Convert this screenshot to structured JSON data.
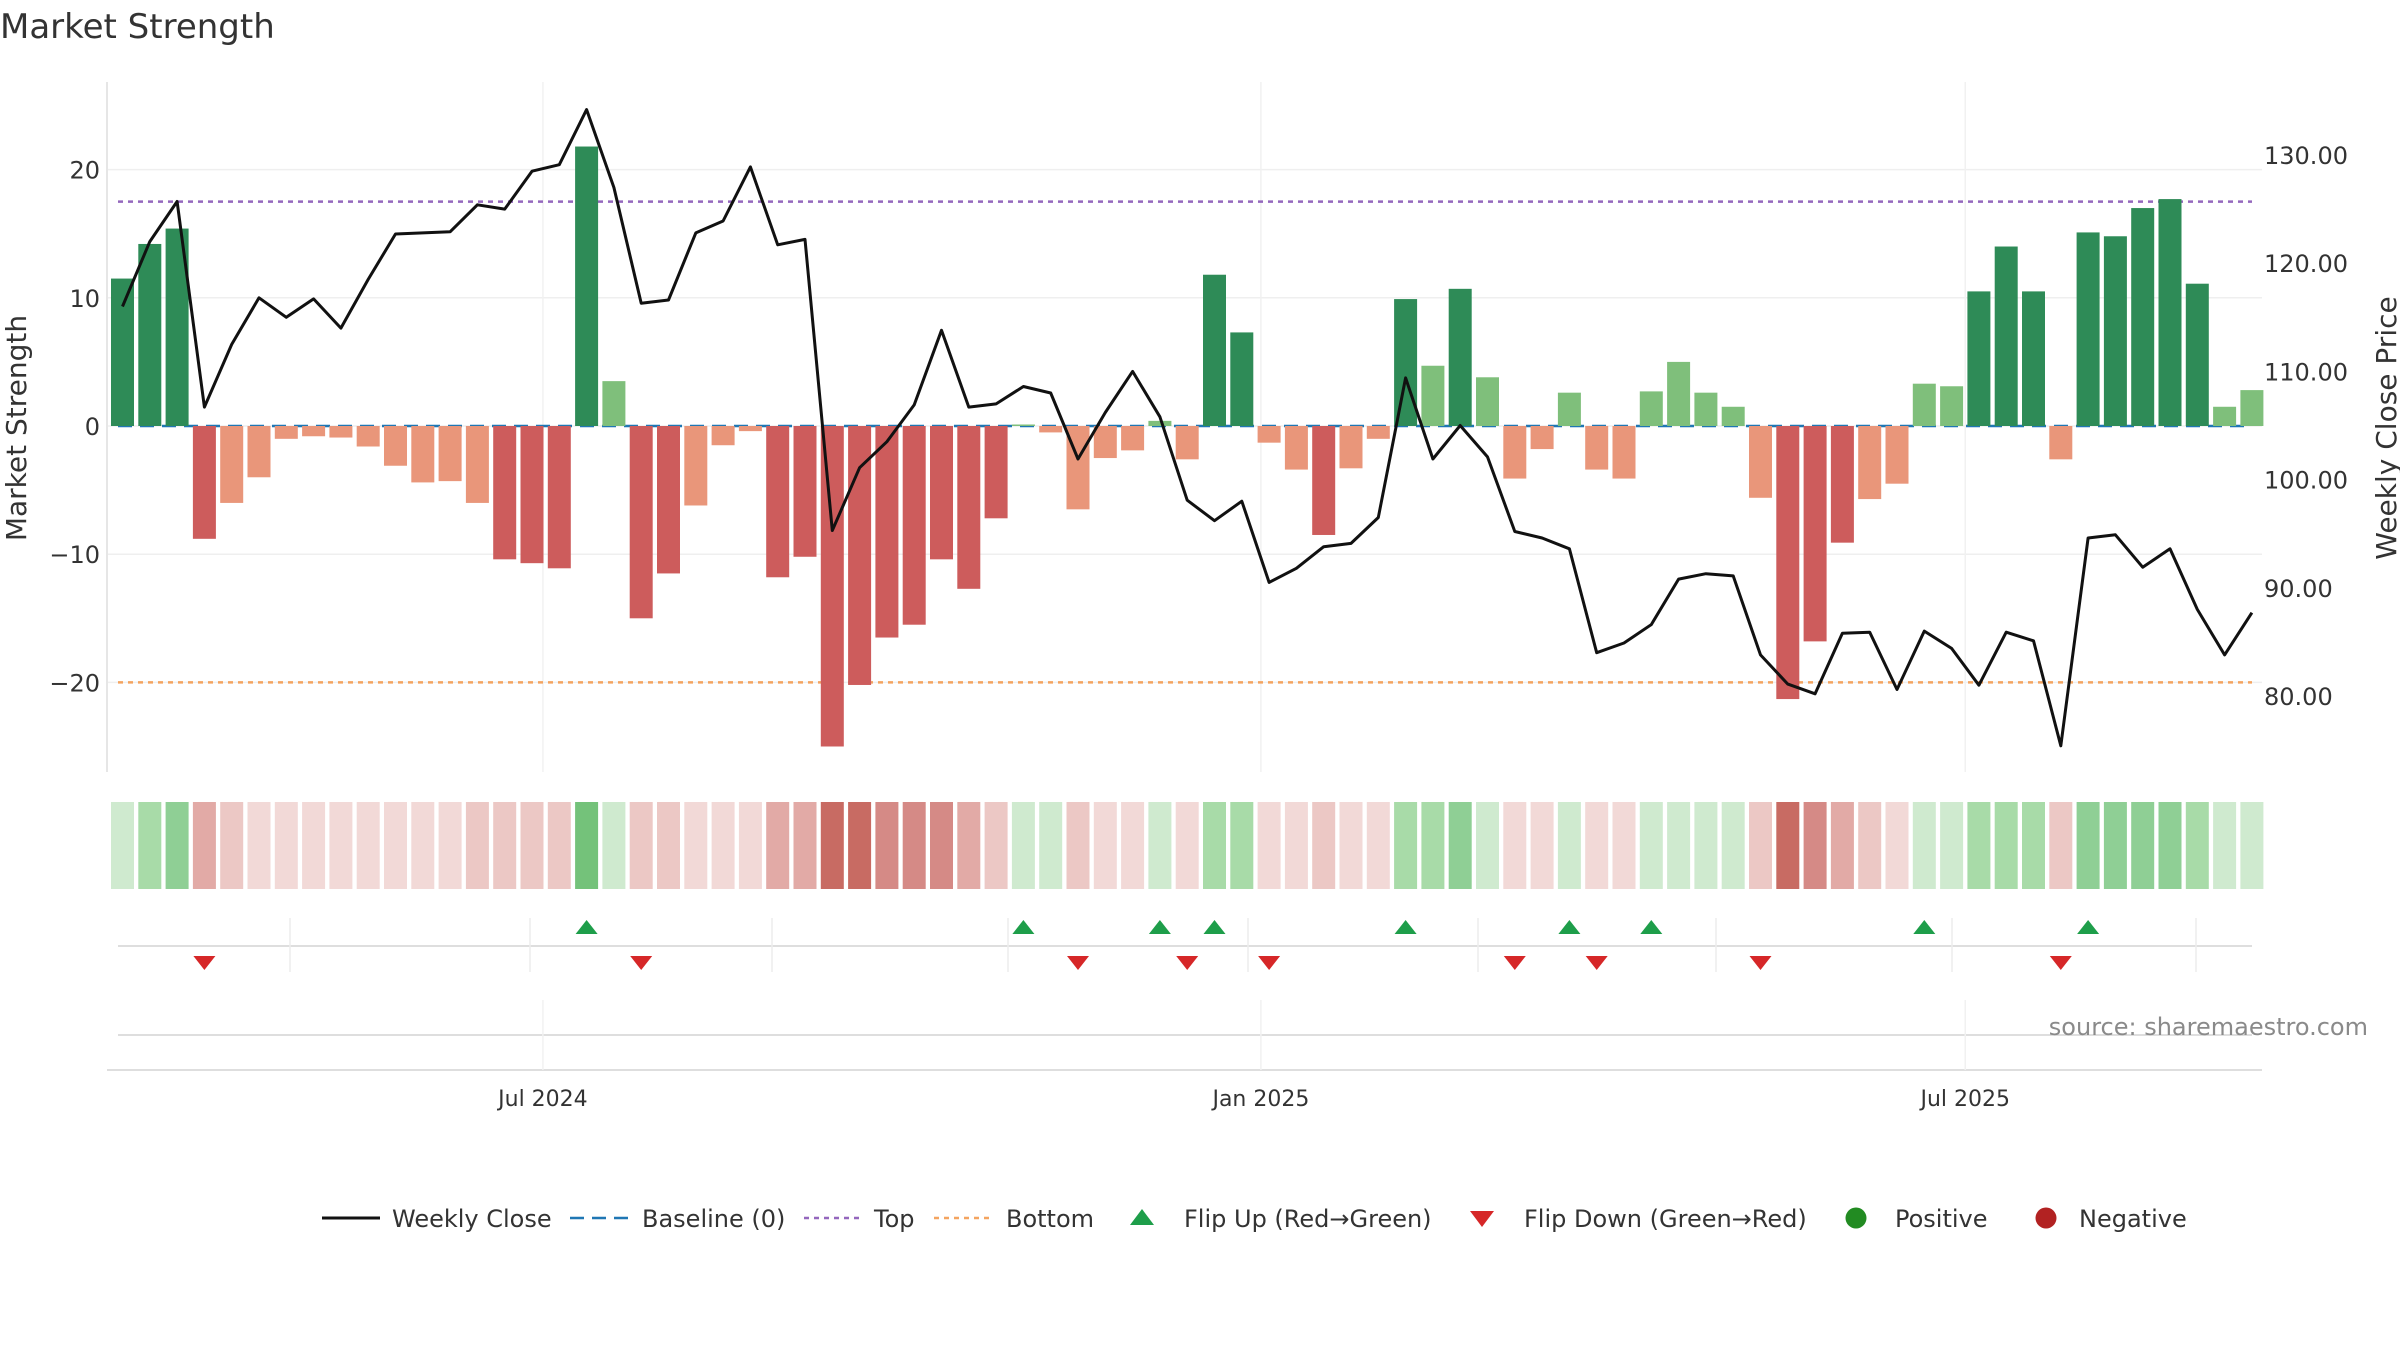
{
  "chart_data": {
    "type": "bar",
    "title": "Market Strength",
    "ylabel": "Market Strength",
    "y2label": "Weekly Close Price",
    "ylim": [
      -27,
      27
    ],
    "y2lim": [
      71.5,
      136.6
    ],
    "yticks": [
      20,
      10,
      0,
      -10,
      -20
    ],
    "ytick_labels": [
      "20",
      "10",
      "0",
      "−10",
      "−20"
    ],
    "y2ticks": [
      130,
      120,
      110,
      100,
      90,
      80
    ],
    "y2tick_labels": [
      "130.00",
      "120.00",
      "110.00",
      "100.00",
      "90.00",
      "80.00"
    ],
    "x_ticks": [
      {
        "label": "Jul 2024",
        "index": 15.4
      },
      {
        "label": "Jan 2025",
        "index": 41.7
      },
      {
        "label": "Jul 2025",
        "index": 67.5
      }
    ],
    "top_line": 17.5,
    "bottom_line": -20,
    "baseline": 0,
    "market_strength": [
      11.5,
      14.2,
      15.4,
      -8.8,
      -6.0,
      -4.0,
      -1.0,
      -0.8,
      -0.9,
      -1.6,
      -3.1,
      -4.4,
      -4.3,
      -6.0,
      -10.4,
      -10.7,
      -11.1,
      21.8,
      3.5,
      -15.0,
      -11.5,
      -6.2,
      -1.5,
      -0.4,
      -11.8,
      -10.2,
      -25.0,
      -20.2,
      -16.5,
      -15.5,
      -10.4,
      -12.7,
      -7.2,
      0.1,
      -0.5,
      -6.5,
      -2.5,
      -1.9,
      0.4,
      -2.6,
      11.8,
      7.3,
      -1.3,
      -3.4,
      -8.5,
      -3.3,
      -1.0,
      9.9,
      4.7,
      10.7,
      3.8,
      -4.1,
      -1.8,
      2.6,
      -3.4,
      -4.1,
      2.7,
      5.0,
      2.6,
      1.5,
      -5.6,
      -21.3,
      -16.8,
      -9.1,
      -5.7,
      -4.5,
      3.3,
      3.1,
      10.5,
      14.0,
      10.5,
      -2.6,
      15.1,
      14.8,
      17.0,
      17.7,
      11.1,
      1.5,
      2.8
    ],
    "weekly_close": [
      116.0,
      122.0,
      125.7,
      106.7,
      112.5,
      116.8,
      115.0,
      116.7,
      114.0,
      118.5,
      122.7,
      122.8,
      122.9,
      125.4,
      125.0,
      128.5,
      129.1,
      134.2,
      127.0,
      116.3,
      116.6,
      122.8,
      123.9,
      128.9,
      121.7,
      122.2,
      95.3,
      101.1,
      103.5,
      106.9,
      113.8,
      106.7,
      107.0,
      108.6,
      108.0,
      101.9,
      106.2,
      110.0,
      105.8,
      98.1,
      96.2,
      98.0,
      90.5,
      91.8,
      93.8,
      94.1,
      96.5,
      109.4,
      101.9,
      105.0,
      102.1,
      95.2,
      94.6,
      93.6,
      84.0,
      84.9,
      86.6,
      90.8,
      91.3,
      91.1,
      83.8,
      81.1,
      80.2,
      85.8,
      85.9,
      80.6,
      86.0,
      84.4,
      81.0,
      85.9,
      85.1,
      75.4,
      94.6,
      94.9,
      91.9,
      93.6,
      88.0,
      83.8,
      87.7
    ],
    "heat_row": [
      1,
      2,
      3,
      -3,
      -2,
      -1,
      -1,
      -1,
      -1,
      -1,
      -1,
      -1,
      -1,
      -2,
      -2,
      -2,
      -2,
      4,
      1,
      -2,
      -2,
      -1,
      -1,
      -1,
      -3,
      -3,
      -5,
      -5,
      -4,
      -4,
      -4,
      -3,
      -2,
      1,
      1,
      -2,
      -1,
      -1,
      1,
      -1,
      2,
      2,
      -1,
      -1,
      -2,
      -1,
      -1,
      2,
      2,
      3,
      1,
      -1,
      -1,
      1,
      -1,
      -1,
      1,
      1,
      1,
      1,
      -2,
      -5,
      -4,
      -3,
      -2,
      -1,
      1,
      1,
      2,
      2,
      2,
      -2,
      3,
      3,
      3,
      3,
      2,
      1,
      1
    ],
    "flip_up_indices": [
      17,
      33,
      38,
      40,
      47,
      53,
      56,
      66,
      72
    ],
    "flip_down_indices": [
      3,
      19,
      35,
      39,
      42,
      51,
      54,
      60,
      71
    ],
    "colors": {
      "strong_green": "#2e8b57",
      "light_green": "#7fbf7b",
      "strong_red": "#cd5c5c",
      "light_red": "#e9967a",
      "line": "#111111",
      "baseline": "#1f77b4",
      "top": "#9467bd",
      "bottom": "#f4a460",
      "flip_up": "#1e9e4a",
      "flip_down": "#d62728",
      "positive": "#228b22",
      "negative": "#b22222"
    },
    "legend": [
      {
        "key": "weekly_close",
        "label": "Weekly Close"
      },
      {
        "key": "baseline",
        "label": "Baseline (0)"
      },
      {
        "key": "top",
        "label": "Top"
      },
      {
        "key": "bottom",
        "label": "Bottom"
      },
      {
        "key": "flip_up",
        "label": "Flip Up (Red→Green)"
      },
      {
        "key": "flip_down",
        "label": "Flip Down (Green→Red)"
      },
      {
        "key": "positive",
        "label": "Positive"
      },
      {
        "key": "negative",
        "label": "Negative"
      }
    ],
    "source": "source: sharemaestro.com"
  }
}
